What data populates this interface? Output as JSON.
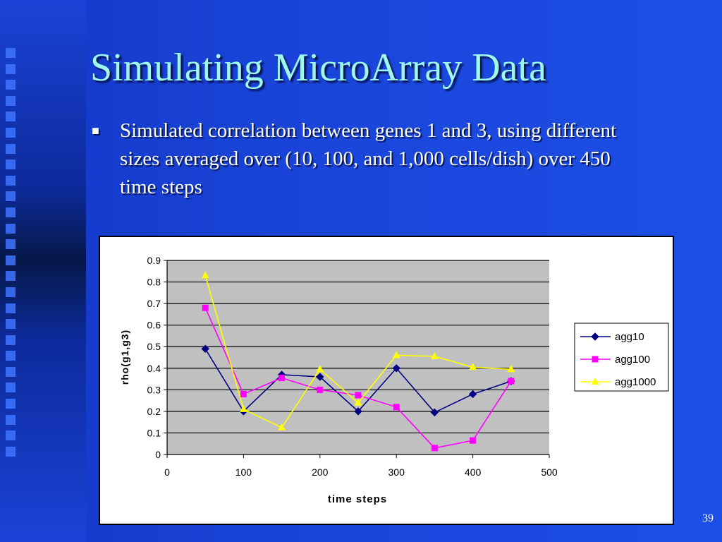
{
  "slide": {
    "title": "Simulating MicroArray Data",
    "bullet": "Simulated correlation between genes 1 and 3, using different sizes averaged over (10, 100, and 1,000 cells/dish) over 450 time steps",
    "page_number": "39"
  },
  "colors": {
    "title": "#9ff7ee",
    "plot_bg": "#c0c0c0",
    "agg10": "#000080",
    "agg100": "#ff00ff",
    "agg1000": "#ffff00"
  },
  "chart_data": {
    "type": "line",
    "title": "",
    "xlabel": "time steps",
    "ylabel": "rho(g1,g3)",
    "xlim": [
      0,
      500
    ],
    "ylim": [
      0,
      0.9
    ],
    "xticks": [
      "0",
      "100",
      "200",
      "300",
      "400",
      "500"
    ],
    "yticks": [
      "0",
      "0.1",
      "0.2",
      "0.3",
      "0.4",
      "0.5",
      "0.6",
      "0.7",
      "0.8",
      "0.9"
    ],
    "grid": true,
    "legend_position": "right",
    "x": [
      50,
      100,
      150,
      200,
      250,
      300,
      350,
      400,
      450
    ],
    "series": [
      {
        "name": "agg10",
        "marker": "diamond",
        "values": [
          0.49,
          0.2,
          0.37,
          0.36,
          0.2,
          0.4,
          0.195,
          0.28,
          0.34
        ]
      },
      {
        "name": "agg100",
        "marker": "square",
        "values": [
          0.68,
          0.28,
          0.355,
          0.3,
          0.275,
          0.22,
          0.03,
          0.065,
          0.34
        ]
      },
      {
        "name": "agg1000",
        "marker": "triangle",
        "values": [
          0.83,
          0.21,
          0.125,
          0.395,
          0.24,
          0.46,
          0.455,
          0.405,
          0.395
        ]
      }
    ]
  }
}
